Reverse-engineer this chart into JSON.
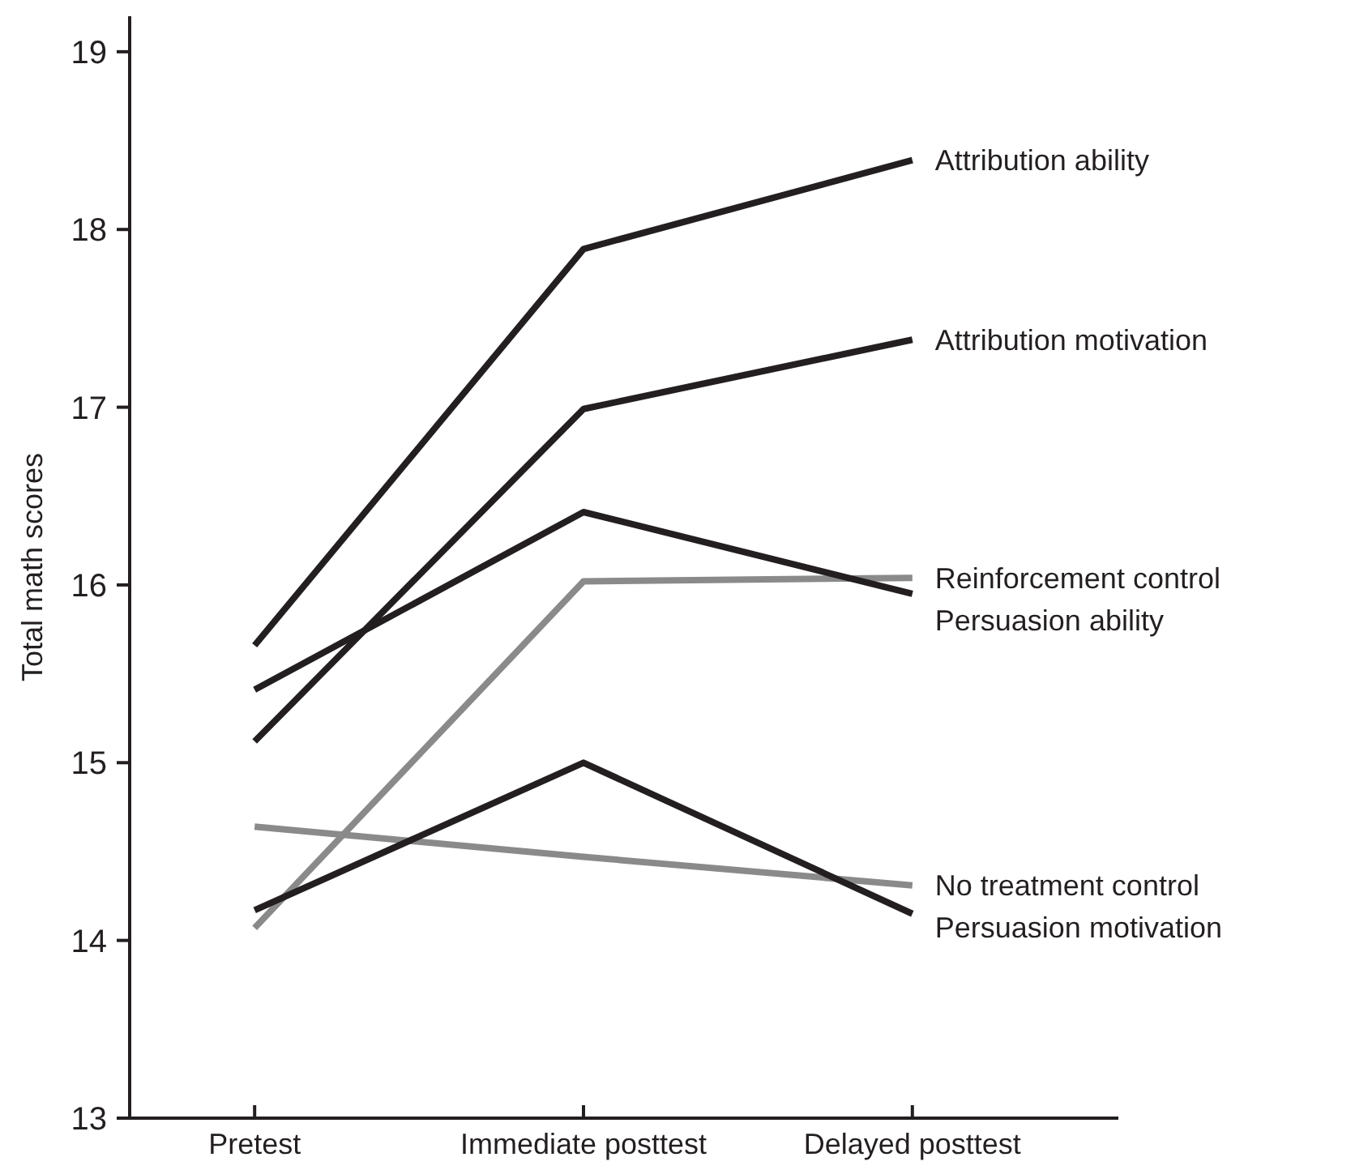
{
  "chart_data": {
    "type": "line",
    "ylabel": "Total math scores",
    "categories": [
      "Pretest",
      "Immediate posttest",
      "Delayed posttest"
    ],
    "ylim": [
      13,
      19.2
    ],
    "yticks": [
      13,
      14,
      15,
      16,
      17,
      18,
      19
    ],
    "series": [
      {
        "name": "Attribution ability",
        "color": "#231f20",
        "values": [
          15.66,
          17.89,
          18.39
        ]
      },
      {
        "name": "Attribution motivation",
        "color": "#231f20",
        "values": [
          15.12,
          16.99,
          17.38
        ]
      },
      {
        "name": "Reinforcement control",
        "color": "#8a8a8a",
        "values": [
          14.07,
          16.02,
          16.04
        ]
      },
      {
        "name": "Persuasion ability",
        "color": "#231f20",
        "values": [
          15.41,
          16.41,
          15.95
        ]
      },
      {
        "name": "No treatment control",
        "color": "#8a8a8a",
        "values": [
          14.64,
          14.47,
          14.31
        ]
      },
      {
        "name": "Persuasion motivation",
        "color": "#231f20",
        "values": [
          14.17,
          15.0,
          14.15
        ]
      }
    ]
  }
}
